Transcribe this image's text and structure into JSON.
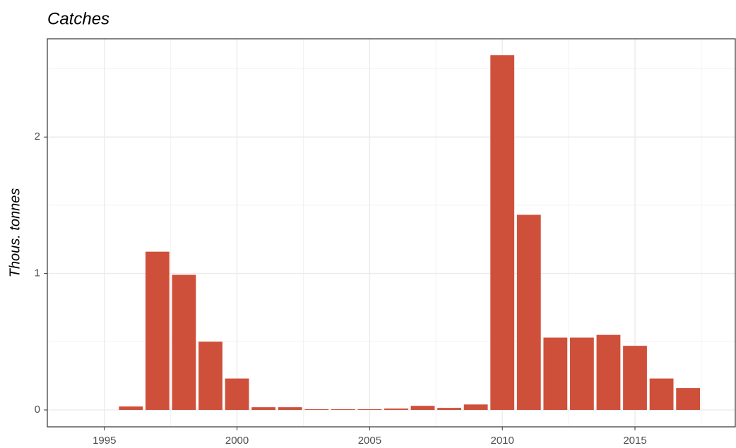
{
  "chart_data": {
    "type": "bar",
    "title": "Catches",
    "y_label": "Thous. tonnes",
    "x": [
      1996,
      1997,
      1998,
      1999,
      2000,
      2001,
      2002,
      2003,
      2004,
      2005,
      2006,
      2007,
      2008,
      2009,
      2010,
      2011,
      2012,
      2013,
      2014,
      2015,
      2016,
      2017
    ],
    "values": [
      0.025,
      1.16,
      0.99,
      0.5,
      0.23,
      0.02,
      0.02,
      0.005,
      0.005,
      0.005,
      0.01,
      0.03,
      0.015,
      0.04,
      2.6,
      1.43,
      0.53,
      0.53,
      0.55,
      0.47,
      0.23,
      0.16
    ],
    "color": "#cf503a",
    "bar_width": 0.9,
    "xlim": [
      1992.85,
      2018.78
    ],
    "xticks": [
      1995,
      2000,
      2005,
      2010,
      2015
    ],
    "x_minor_ticks": [
      1997.5,
      2002.5,
      2007.5,
      2012.5,
      2017.5
    ],
    "ylim": [
      -0.124,
      2.72
    ],
    "yticks": [
      0,
      1,
      2
    ],
    "y_minor_ticks": [
      0.5,
      1.5,
      2.5
    ],
    "grid": true
  }
}
